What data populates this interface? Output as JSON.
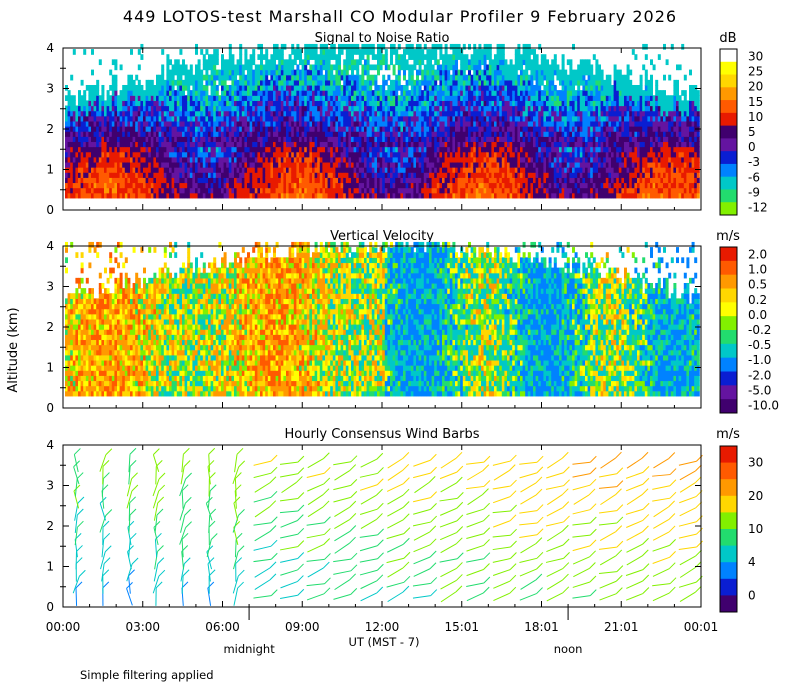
{
  "title": "449 LOTOS-test Marshall CO Modular Profiler  9 February 2026",
  "ylabel": "Altitude (km)",
  "xlabel": "UT  (MST - 7)",
  "footer_note": "Simple filtering applied",
  "time_ticks": [
    "00:00",
    "03:00",
    "06:00",
    "09:00",
    "12:00",
    "15:01",
    "18:01",
    "21:01",
    "00:01"
  ],
  "local_markers": [
    {
      "label": "midnight",
      "hour": 7
    },
    {
      "label": "noon",
      "hour": 19
    }
  ],
  "chart_data": [
    {
      "type": "heatmap",
      "id": "snr",
      "title": "Signal to Noise Ratio",
      "unit": "dB",
      "x_range_hours": [
        0,
        24
      ],
      "ylim": [
        0,
        4
      ],
      "yticks": [
        "0",
        "1",
        "2",
        "3",
        "4"
      ],
      "colorbar": {
        "labels": [
          "30",
          "25",
          "20",
          "15",
          "10",
          "5",
          "0",
          "-3",
          "-6",
          "-9",
          "-12"
        ],
        "colors": [
          "#ffffff",
          "#ffff00",
          "#ffd700",
          "#ff9900",
          "#ff5a00",
          "#e81a00",
          "#40006e",
          "#6414a0",
          "#0a1ed2",
          "#0082ff",
          "#00c8c8",
          "#22dc6e",
          "#82f000"
        ]
      }
    },
    {
      "type": "heatmap",
      "id": "vvel",
      "title": "Vertical Velocity",
      "unit": "m/s",
      "x_range_hours": [
        0,
        24
      ],
      "ylim": [
        0,
        4
      ],
      "yticks": [
        "0",
        "1",
        "2",
        "3",
        "4"
      ],
      "colorbar": {
        "labels": [
          "2.0",
          "1.0",
          "0.5",
          "0.2",
          "0.0",
          "-0.2",
          "-0.5",
          "-1.0",
          "-2.0",
          "-5.0",
          "-10.0"
        ],
        "colors": [
          "#e81a00",
          "#ff5a00",
          "#ff9900",
          "#ffd700",
          "#ffff00",
          "#82f000",
          "#22dc6e",
          "#00c8c8",
          "#0082ff",
          "#0a1ed2",
          "#6414a0",
          "#40006e"
        ]
      }
    },
    {
      "type": "scatter",
      "id": "wind",
      "title": "Hourly Consensus Wind Barbs",
      "unit": "m/s",
      "x_range_hours": [
        0,
        24
      ],
      "ylim": [
        0,
        4
      ],
      "yticks": [
        "0",
        "1",
        "2",
        "3",
        "4"
      ],
      "colorbar": {
        "labels": [
          "30",
          "20",
          "10",
          "4",
          "0"
        ],
        "colors": [
          "#e81a00",
          "#ff5a00",
          "#ff9900",
          "#ffd700",
          "#82f000",
          "#22dc6e",
          "#00c8c8",
          "#0082ff",
          "#0a1ed2",
          "#40006e"
        ]
      }
    }
  ]
}
